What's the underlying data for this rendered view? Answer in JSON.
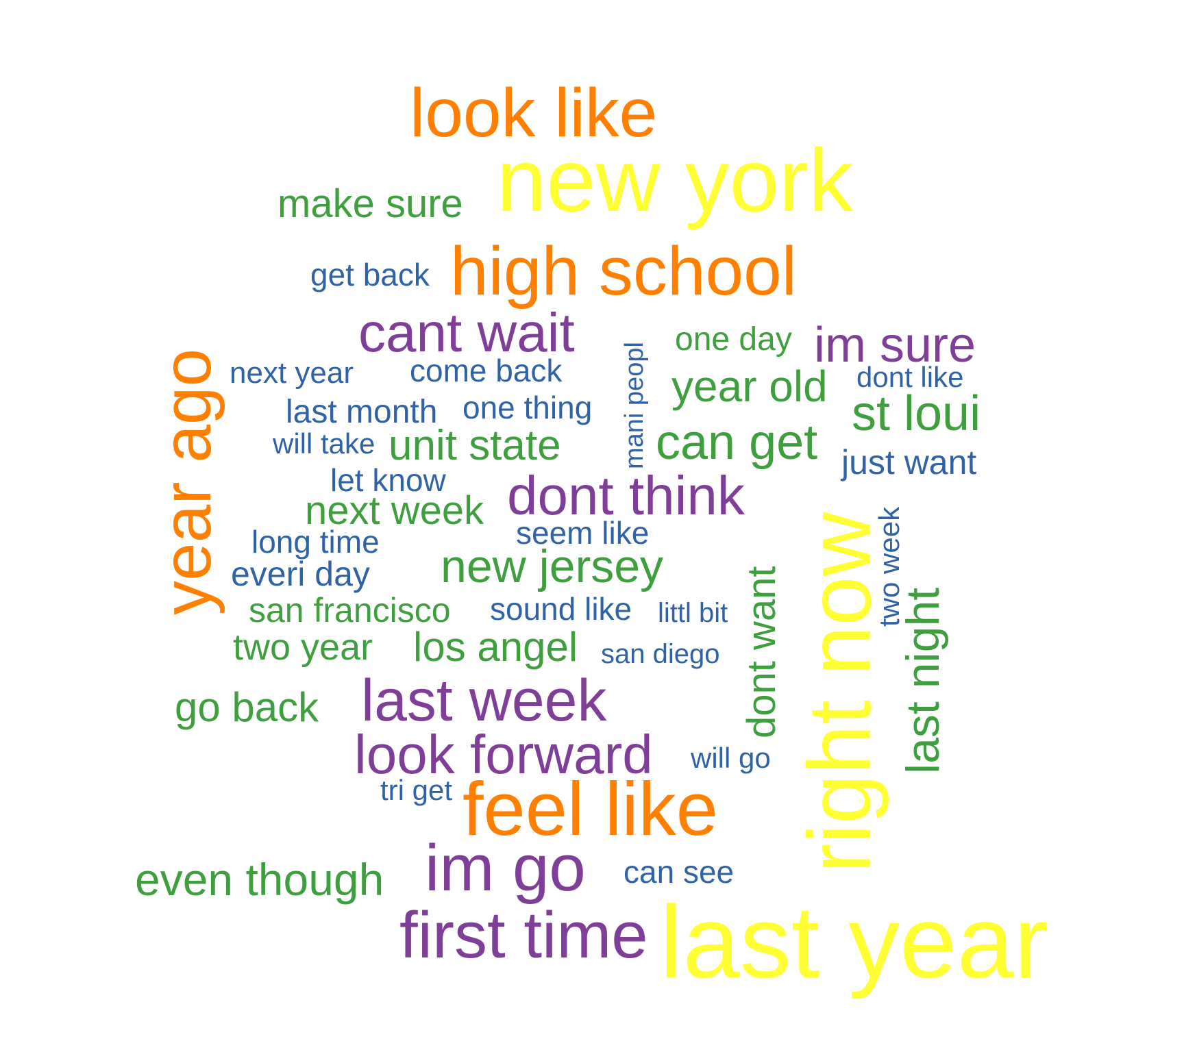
{
  "palette": {
    "yellow": "#ffff33",
    "orange": "#ff7f00",
    "purple": "#7f3f98",
    "green": "#3f9f3f",
    "blue": "#2f63a5"
  },
  "words": [
    {
      "text": "look like",
      "color": "orange"
    },
    {
      "text": "new york",
      "color": "yellow"
    },
    {
      "text": "make sure",
      "color": "green"
    },
    {
      "text": "high school",
      "color": "orange"
    },
    {
      "text": "get back",
      "color": "blue"
    },
    {
      "text": "year ago",
      "color": "orange"
    },
    {
      "text": "cant wait",
      "color": "purple"
    },
    {
      "text": "mani peopl",
      "color": "blue"
    },
    {
      "text": "one day",
      "color": "green"
    },
    {
      "text": "im sure",
      "color": "purple"
    },
    {
      "text": "next year",
      "color": "blue"
    },
    {
      "text": "come back",
      "color": "blue"
    },
    {
      "text": "dont like",
      "color": "blue"
    },
    {
      "text": "year old",
      "color": "green"
    },
    {
      "text": "last month",
      "color": "blue"
    },
    {
      "text": "one thing",
      "color": "blue"
    },
    {
      "text": "st loui",
      "color": "green"
    },
    {
      "text": "will take",
      "color": "blue"
    },
    {
      "text": "unit state",
      "color": "green"
    },
    {
      "text": "can get",
      "color": "green"
    },
    {
      "text": "just want",
      "color": "blue"
    },
    {
      "text": "let know",
      "color": "blue"
    },
    {
      "text": "dont think",
      "color": "purple"
    },
    {
      "text": "next week",
      "color": "green"
    },
    {
      "text": "two week",
      "color": "blue"
    },
    {
      "text": "seem like",
      "color": "blue"
    },
    {
      "text": "long time",
      "color": "blue"
    },
    {
      "text": "dont want",
      "color": "green"
    },
    {
      "text": "right now",
      "color": "yellow"
    },
    {
      "text": "new jersey",
      "color": "green"
    },
    {
      "text": "last night",
      "color": "green"
    },
    {
      "text": "everi day",
      "color": "blue"
    },
    {
      "text": "san francisco",
      "color": "green"
    },
    {
      "text": "sound like",
      "color": "blue"
    },
    {
      "text": "littl bit",
      "color": "blue"
    },
    {
      "text": "two year",
      "color": "green"
    },
    {
      "text": "los angel",
      "color": "green"
    },
    {
      "text": "san diego",
      "color": "blue"
    },
    {
      "text": "go back",
      "color": "green"
    },
    {
      "text": "last week",
      "color": "purple"
    },
    {
      "text": "look forward",
      "color": "purple"
    },
    {
      "text": "will go",
      "color": "blue"
    },
    {
      "text": "tri get",
      "color": "blue"
    },
    {
      "text": "feel like",
      "color": "orange"
    },
    {
      "text": "even though",
      "color": "green"
    },
    {
      "text": "im go",
      "color": "purple"
    },
    {
      "text": "can see",
      "color": "blue"
    },
    {
      "text": "first time",
      "color": "purple"
    },
    {
      "text": "last year",
      "color": "yellow"
    }
  ]
}
